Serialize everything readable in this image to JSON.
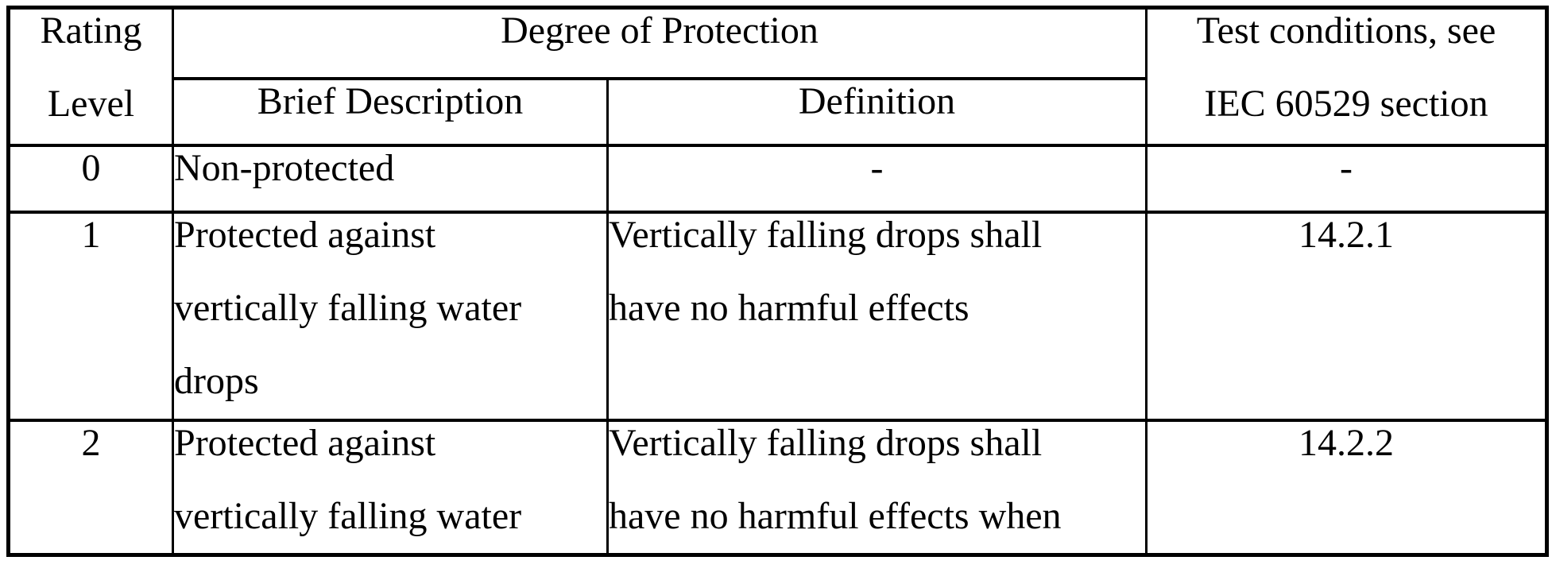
{
  "document": {
    "kind": "scanned-standard-table",
    "background_color": "#ffffff",
    "line_color": "#000000",
    "text_color": "#000000"
  },
  "table": {
    "header": {
      "rating_lines": [
        "Rating",
        "Level"
      ],
      "degree": "Degree of Protection",
      "brief": "Brief Description",
      "definition": "Definition",
      "test_lines": [
        "Test conditions, see",
        "IEC 60529 section"
      ]
    },
    "rows": [
      {
        "level": "0",
        "brief_lines": [
          "Non-protected"
        ],
        "definition_lines": [
          "-"
        ],
        "test": "-"
      },
      {
        "level": "1",
        "brief_lines": [
          "Protected against",
          "vertically falling water",
          "drops"
        ],
        "definition_lines": [
          "Vertically falling drops shall",
          "have no harmful effects"
        ],
        "test": "14.2.1"
      },
      {
        "level": "2",
        "brief_lines": [
          "Protected against",
          "vertically falling water"
        ],
        "definition_lines": [
          "Vertically falling drops shall",
          "have no harmful effects when"
        ],
        "test": "14.2.2"
      }
    ]
  }
}
